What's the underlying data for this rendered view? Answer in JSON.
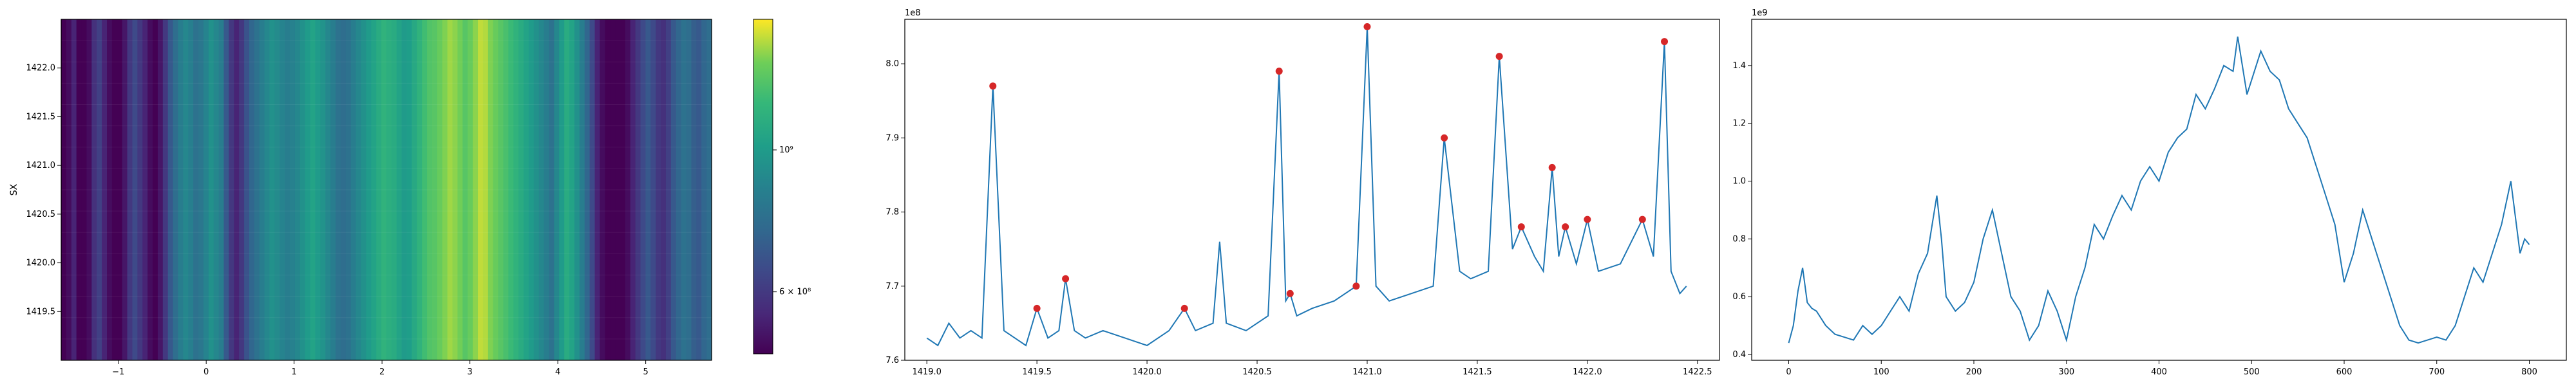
{
  "chart_data": [
    {
      "type": "heatmap",
      "xlabel": "",
      "ylabel": "SX",
      "xlim": [
        -1.65,
        5.75
      ],
      "ylim": [
        1419.0,
        1422.5
      ],
      "x_ticks": [
        "−1",
        "0",
        "1",
        "2",
        "3",
        "4",
        "5"
      ],
      "x_tick_values": [
        -1,
        0,
        1,
        2,
        3,
        4,
        5
      ],
      "y_ticks": [
        "1419.5",
        "1420.0",
        "1420.5",
        "1421.0",
        "1421.5",
        "1422.0"
      ],
      "y_tick_values": [
        1419.5,
        1420.0,
        1420.5,
        1421.0,
        1421.5,
        1422.0
      ],
      "colormap": "viridis",
      "color_scale": "log",
      "colorbar_ticks": [
        {
          "label": "6 × 10⁸",
          "value": 600000000
        },
        {
          "label": "10⁹",
          "value": 1000000000
        }
      ],
      "colorbar_range": [
        480000000,
        1600000000
      ],
      "column_values": [
        0.45,
        0.5,
        0.55,
        0.48,
        0.47,
        0.5,
        0.58,
        0.62,
        0.55,
        0.5,
        0.48,
        0.47,
        0.52,
        0.6,
        0.65,
        0.6,
        0.55,
        0.5,
        0.48,
        0.52,
        0.6,
        0.7,
        0.78,
        0.85,
        0.9,
        0.86,
        0.8,
        0.82,
        0.88,
        0.95,
        0.9,
        0.85,
        0.7,
        0.6,
        0.55,
        0.6,
        0.68,
        0.75,
        0.8,
        0.85,
        0.9,
        0.95,
        0.92,
        0.88,
        0.85,
        0.87,
        0.9,
        0.95,
        1.0,
        1.05,
        1.0,
        0.96,
        0.9,
        0.85,
        0.8,
        0.78,
        0.8,
        0.85,
        0.9,
        0.95,
        1.0,
        1.05,
        1.1,
        1.15,
        1.12,
        1.1,
        1.05,
        1.0,
        1.02,
        1.08,
        1.15,
        1.22,
        1.28,
        1.3,
        1.35,
        1.4,
        1.45,
        1.42,
        1.38,
        1.3,
        1.35,
        1.42,
        1.5,
        1.48,
        1.4,
        1.35,
        1.3,
        1.25,
        1.2,
        1.15,
        1.1,
        1.05,
        1.0,
        0.95,
        0.9,
        0.85,
        0.8,
        0.9,
        1.0,
        1.1,
        1.05,
        0.95,
        0.85,
        0.75,
        0.65,
        0.55,
        0.5,
        0.48,
        0.47,
        0.46,
        0.45,
        0.5,
        0.55,
        0.6,
        0.65,
        0.7,
        0.65,
        0.6,
        0.58,
        0.62,
        0.7,
        0.75,
        0.8,
        0.78,
        0.72,
        0.7,
        0.75,
        0.78
      ]
    },
    {
      "type": "line",
      "offset_label": "1e8",
      "xlim": [
        1418.9,
        1422.6
      ],
      "ylim": [
        7.6,
        8.06
      ],
      "x_ticks": [
        "1419.0",
        "1419.5",
        "1420.0",
        "1420.5",
        "1421.0",
        "1421.5",
        "1422.0",
        "1422.5"
      ],
      "x_tick_values": [
        1419.0,
        1419.5,
        1420.0,
        1420.5,
        1421.0,
        1421.5,
        1422.0,
        1422.5
      ],
      "y_ticks": [
        "7.6",
        "7.7",
        "7.8",
        "7.9",
        "8.0"
      ],
      "y_tick_values": [
        7.6,
        7.7,
        7.8,
        7.9,
        8.0
      ],
      "series": [
        {
          "color": "#1f77b4",
          "x": [
            1419.0,
            1419.05,
            1419.1,
            1419.15,
            1419.2,
            1419.25,
            1419.3,
            1419.35,
            1419.4,
            1419.45,
            1419.5,
            1419.55,
            1419.6,
            1419.63,
            1419.67,
            1419.72,
            1419.8,
            1419.9,
            1420.0,
            1420.1,
            1420.17,
            1420.22,
            1420.3,
            1420.33,
            1420.36,
            1420.45,
            1420.55,
            1420.6,
            1420.63,
            1420.65,
            1420.68,
            1420.75,
            1420.85,
            1420.95,
            1421.0,
            1421.04,
            1421.1,
            1421.2,
            1421.3,
            1421.35,
            1421.42,
            1421.47,
            1421.55,
            1421.6,
            1421.66,
            1421.7,
            1421.76,
            1421.8,
            1421.84,
            1421.87,
            1421.9,
            1421.95,
            1422.0,
            1422.05,
            1422.15,
            1422.25,
            1422.3,
            1422.35,
            1422.38,
            1422.42,
            1422.45
          ],
          "y": [
            7.63,
            7.62,
            7.65,
            7.63,
            7.64,
            7.63,
            7.97,
            7.64,
            7.63,
            7.62,
            7.67,
            7.63,
            7.64,
            7.71,
            7.64,
            7.63,
            7.64,
            7.63,
            7.62,
            7.64,
            7.67,
            7.64,
            7.65,
            7.76,
            7.65,
            7.64,
            7.66,
            7.99,
            7.68,
            7.69,
            7.66,
            7.67,
            7.68,
            7.7,
            8.05,
            7.7,
            7.68,
            7.69,
            7.7,
            7.9,
            7.72,
            7.71,
            7.72,
            8.01,
            7.75,
            7.78,
            7.74,
            7.72,
            7.86,
            7.74,
            7.78,
            7.73,
            7.79,
            7.72,
            7.73,
            7.79,
            7.74,
            8.03,
            7.72,
            7.69,
            7.7
          ]
        }
      ],
      "peaks": {
        "color": "#d62728",
        "x": [
          1419.3,
          1419.5,
          1419.63,
          1420.17,
          1420.6,
          1420.65,
          1421.0,
          1420.95,
          1421.35,
          1421.6,
          1421.7,
          1421.84,
          1421.9,
          1422.0,
          1422.25,
          1422.35
        ],
        "y": [
          7.97,
          7.67,
          7.71,
          7.67,
          7.99,
          7.69,
          8.05,
          7.7,
          7.9,
          8.01,
          7.78,
          7.86,
          7.78,
          7.79,
          7.79,
          8.03
        ]
      }
    },
    {
      "type": "line",
      "offset_label": "1e9",
      "xlim": [
        -40,
        840
      ],
      "ylim": [
        0.38,
        1.56
      ],
      "x_ticks": [
        "0",
        "100",
        "200",
        "300",
        "400",
        "500",
        "600",
        "700",
        "800"
      ],
      "x_tick_values": [
        0,
        100,
        200,
        300,
        400,
        500,
        600,
        700,
        800
      ],
      "y_ticks": [
        "0.4",
        "0.6",
        "0.8",
        "1.0",
        "1.2",
        "1.4"
      ],
      "y_tick_values": [
        0.4,
        0.6,
        0.8,
        1.0,
        1.2,
        1.4
      ],
      "series": [
        {
          "color": "#1f77b4",
          "x": [
            0,
            5,
            10,
            15,
            20,
            25,
            30,
            40,
            50,
            60,
            70,
            80,
            90,
            100,
            110,
            120,
            130,
            140,
            150,
            160,
            165,
            170,
            180,
            190,
            200,
            210,
            220,
            230,
            240,
            250,
            260,
            270,
            280,
            290,
            300,
            310,
            320,
            330,
            340,
            350,
            360,
            370,
            380,
            390,
            400,
            410,
            420,
            430,
            440,
            450,
            460,
            470,
            480,
            485,
            490,
            495,
            500,
            510,
            520,
            530,
            540,
            550,
            560,
            570,
            580,
            590,
            600,
            610,
            620,
            630,
            640,
            650,
            660,
            670,
            680,
            690,
            700,
            710,
            720,
            730,
            740,
            750,
            760,
            770,
            780,
            790,
            795,
            800
          ],
          "y": [
            0.44,
            0.5,
            0.62,
            0.7,
            0.58,
            0.56,
            0.55,
            0.5,
            0.47,
            0.46,
            0.45,
            0.5,
            0.47,
            0.5,
            0.55,
            0.6,
            0.55,
            0.68,
            0.75,
            0.95,
            0.8,
            0.6,
            0.55,
            0.58,
            0.65,
            0.8,
            0.9,
            0.75,
            0.6,
            0.55,
            0.45,
            0.5,
            0.62,
            0.55,
            0.45,
            0.6,
            0.7,
            0.85,
            0.8,
            0.88,
            0.95,
            0.9,
            1.0,
            1.05,
            1.0,
            1.1,
            1.15,
            1.18,
            1.3,
            1.25,
            1.32,
            1.4,
            1.38,
            1.5,
            1.4,
            1.3,
            1.35,
            1.45,
            1.38,
            1.35,
            1.25,
            1.2,
            1.15,
            1.05,
            0.95,
            0.85,
            0.65,
            0.75,
            0.9,
            0.8,
            0.7,
            0.6,
            0.5,
            0.45,
            0.44,
            0.45,
            0.46,
            0.45,
            0.5,
            0.6,
            0.7,
            0.65,
            0.75,
            0.85,
            1.0,
            0.75,
            0.8,
            0.78
          ]
        }
      ]
    }
  ]
}
